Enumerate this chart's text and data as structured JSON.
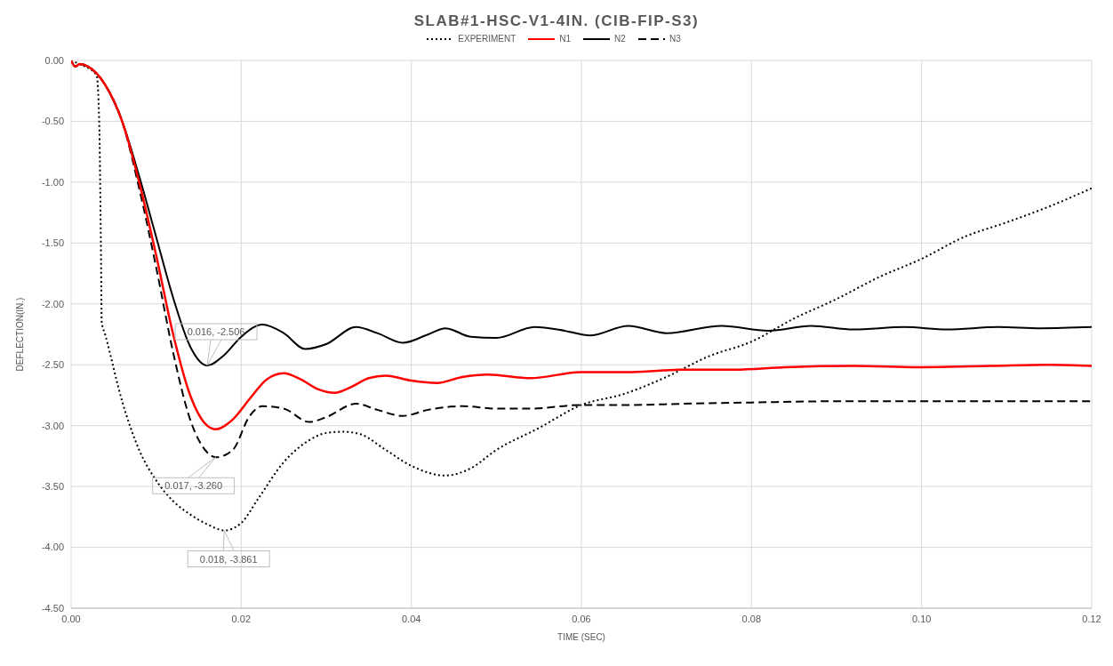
{
  "chart_data": {
    "type": "line",
    "title": "SLAB#1-HSC-V1-4IN. (CIB-FIP-S3)",
    "xlabel": "TIME (SEC)",
    "ylabel": "DEFLECTION(IN.)",
    "xlim": [
      0,
      0.12
    ],
    "ylim": [
      -4.5,
      0
    ],
    "xticks": [
      {
        "value": 0,
        "label": "0.00"
      },
      {
        "value": 0.02,
        "label": "0.02"
      },
      {
        "value": 0.04,
        "label": "0.04"
      },
      {
        "value": 0.06,
        "label": "0.06"
      },
      {
        "value": 0.08,
        "label": "0.08"
      },
      {
        "value": 0.1,
        "label": "0.10"
      },
      {
        "value": 0.12,
        "label": "0.12"
      }
    ],
    "yticks": [
      {
        "value": 0,
        "label": "0.00"
      },
      {
        "value": -0.5,
        "label": "-0.50"
      },
      {
        "value": -1,
        "label": "-1.00"
      },
      {
        "value": -1.5,
        "label": "-1.50"
      },
      {
        "value": -2,
        "label": "-2.00"
      },
      {
        "value": -2.5,
        "label": "-2.50"
      },
      {
        "value": -3,
        "label": "-3.00"
      },
      {
        "value": -3.5,
        "label": "-3.50"
      },
      {
        "value": -4,
        "label": "-4.00"
      },
      {
        "value": -4.5,
        "label": "-4.50"
      }
    ],
    "grid": true,
    "legend": "top",
    "marker": "none",
    "series": [
      {
        "name": "EXPERIMENT",
        "color": "#000000",
        "line_style": "dotted",
        "x": [
          0,
          0.001,
          0.003,
          0.0033,
          0.0035,
          0.0036,
          0.004,
          0.006,
          0.008,
          0.01,
          0.012,
          0.014,
          0.016,
          0.018,
          0.02,
          0.022,
          0.025,
          0.028,
          0.03,
          0.032,
          0.034,
          0.037,
          0.04,
          0.044,
          0.047,
          0.05,
          0.055,
          0.06,
          0.065,
          0.07,
          0.075,
          0.08,
          0.085,
          0.09,
          0.095,
          0.1,
          0.105,
          0.11,
          0.115,
          0.12
        ],
        "values": [
          0,
          -0.03,
          -0.12,
          -0.5,
          -1.5,
          -2.15,
          -2.25,
          -2.8,
          -3.2,
          -3.45,
          -3.62,
          -3.73,
          -3.81,
          -3.861,
          -3.8,
          -3.6,
          -3.3,
          -3.12,
          -3.06,
          -3.05,
          -3.07,
          -3.2,
          -3.33,
          -3.41,
          -3.35,
          -3.2,
          -3.02,
          -2.83,
          -2.74,
          -2.6,
          -2.43,
          -2.31,
          -2.12,
          -1.96,
          -1.78,
          -1.63,
          -1.45,
          -1.33,
          -1.2,
          -1.05
        ]
      },
      {
        "name": "N1",
        "color": "#ff0000",
        "line_style": "solid",
        "x": [
          0,
          0.0005,
          0.001,
          0.002,
          0.004,
          0.006,
          0.008,
          0.01,
          0.012,
          0.014,
          0.016,
          0.017,
          0.019,
          0.021,
          0.023,
          0.025,
          0.027,
          0.029,
          0.031,
          0.033,
          0.035,
          0.037,
          0.04,
          0.043,
          0.046,
          0.049,
          0.054,
          0.06,
          0.066,
          0.072,
          0.078,
          0.084,
          0.092,
          0.1,
          0.108,
          0.115,
          0.12
        ],
        "values": [
          0,
          -0.05,
          -0.03,
          -0.05,
          -0.2,
          -0.5,
          -1,
          -1.6,
          -2.25,
          -2.75,
          -3,
          -3.03,
          -2.95,
          -2.78,
          -2.62,
          -2.57,
          -2.62,
          -2.7,
          -2.73,
          -2.68,
          -2.61,
          -2.59,
          -2.63,
          -2.65,
          -2.6,
          -2.58,
          -2.61,
          -2.56,
          -2.56,
          -2.54,
          -2.54,
          -2.52,
          -2.51,
          -2.52,
          -2.51,
          -2.5,
          -2.51
        ]
      },
      {
        "name": "N2",
        "color": "#000000",
        "line_style": "solid",
        "x": [
          0,
          0.0005,
          0.001,
          0.002,
          0.004,
          0.006,
          0.008,
          0.01,
          0.012,
          0.014,
          0.016,
          0.018,
          0.02,
          0.0225,
          0.025,
          0.0275,
          0.03,
          0.0335,
          0.036,
          0.039,
          0.042,
          0.044,
          0.047,
          0.05,
          0.0545,
          0.058,
          0.061,
          0.0655,
          0.07,
          0.0765,
          0.082,
          0.087,
          0.092,
          0.098,
          0.103,
          0.109,
          0.114,
          0.12
        ],
        "values": [
          0,
          -0.05,
          -0.03,
          -0.05,
          -0.2,
          -0.5,
          -0.95,
          -1.45,
          -1.95,
          -2.35,
          -2.506,
          -2.42,
          -2.27,
          -2.17,
          -2.24,
          -2.37,
          -2.33,
          -2.19,
          -2.24,
          -2.32,
          -2.25,
          -2.2,
          -2.27,
          -2.28,
          -2.19,
          -2.22,
          -2.26,
          -2.18,
          -2.24,
          -2.18,
          -2.22,
          -2.18,
          -2.21,
          -2.19,
          -2.21,
          -2.19,
          -2.2,
          -2.19
        ]
      },
      {
        "name": "N3",
        "color": "#000000",
        "line_style": "dashed",
        "x": [
          0,
          0.0005,
          0.001,
          0.002,
          0.004,
          0.006,
          0.008,
          0.01,
          0.012,
          0.014,
          0.016,
          0.017,
          0.019,
          0.021,
          0.0225,
          0.025,
          0.028,
          0.03,
          0.0335,
          0.036,
          0.039,
          0.042,
          0.046,
          0.05,
          0.054,
          0.06,
          0.066,
          0.072,
          0.08,
          0.09,
          0.1,
          0.11,
          0.12
        ],
        "values": [
          0,
          -0.05,
          -0.03,
          -0.05,
          -0.2,
          -0.5,
          -1.05,
          -1.7,
          -2.4,
          -2.95,
          -3.22,
          -3.26,
          -3.2,
          -2.92,
          -2.84,
          -2.86,
          -2.97,
          -2.93,
          -2.82,
          -2.87,
          -2.92,
          -2.87,
          -2.84,
          -2.86,
          -2.86,
          -2.83,
          -2.83,
          -2.82,
          -2.81,
          -2.8,
          -2.8,
          -2.8,
          -2.8
        ]
      }
    ],
    "annotations": [
      {
        "text": "0.016, -2.506",
        "x": 0.016,
        "y": -2.506
      },
      {
        "text": "0.017, -3.260",
        "x": 0.017,
        "y": -3.26
      },
      {
        "text": "0.018, -3.861",
        "x": 0.018,
        "y": -3.861
      }
    ]
  }
}
